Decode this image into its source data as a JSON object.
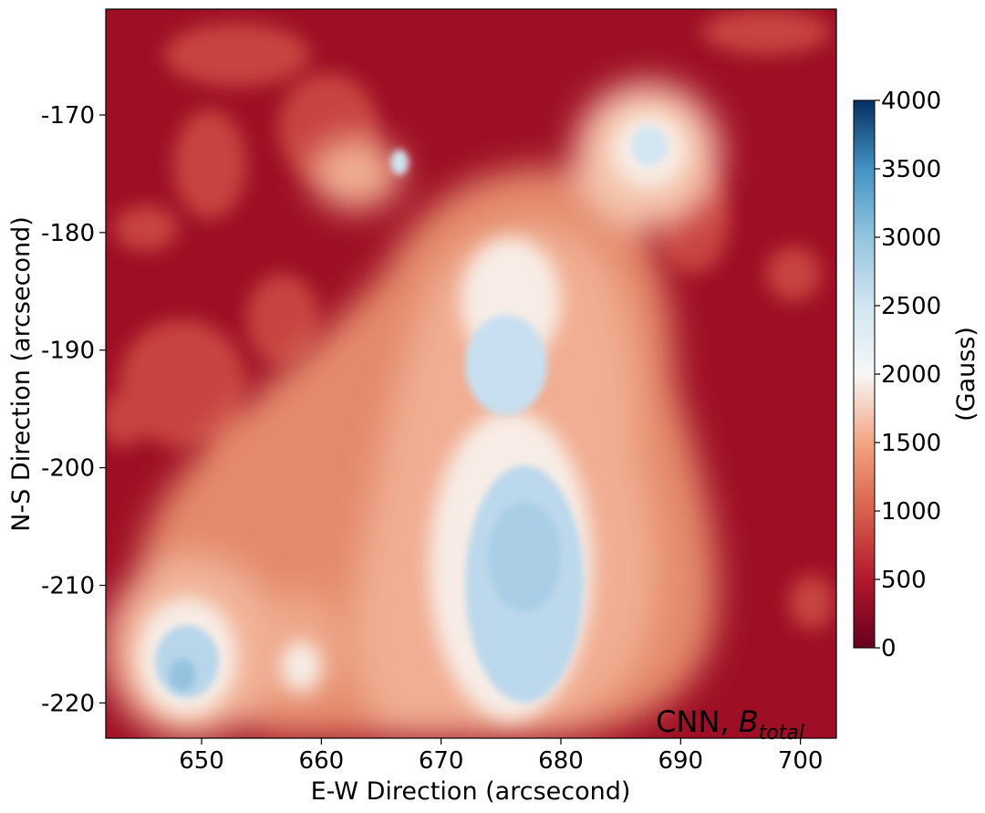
{
  "chart_data": {
    "type": "heatmap",
    "title": "",
    "xlabel": "E-W Direction (arcsecond)",
    "ylabel": "N-S Direction (arcsecond)",
    "xlim": [
      642,
      703
    ],
    "ylim": [
      -223,
      -161
    ],
    "x_ticks": [
      {
        "value": 650,
        "label": "650"
      },
      {
        "value": 660,
        "label": "660"
      },
      {
        "value": 670,
        "label": "670"
      },
      {
        "value": 680,
        "label": "680"
      },
      {
        "value": 690,
        "label": "690"
      },
      {
        "value": 700,
        "label": "700"
      }
    ],
    "y_ticks": [
      {
        "value": -170,
        "label": "-170"
      },
      {
        "value": -180,
        "label": "-180"
      },
      {
        "value": -190,
        "label": "-190"
      },
      {
        "value": -200,
        "label": "-200"
      },
      {
        "value": -210,
        "label": "-210"
      },
      {
        "value": -220,
        "label": "-220"
      }
    ],
    "colorbar": {
      "label": "(Gauss)",
      "range": [
        0,
        4000
      ],
      "colormap": "RdBu",
      "ticks": [
        {
          "value": 0,
          "label": "0"
        },
        {
          "value": 500,
          "label": "500"
        },
        {
          "value": 1000,
          "label": "1000"
        },
        {
          "value": 1500,
          "label": "1500"
        },
        {
          "value": 2000,
          "label": "2000"
        },
        {
          "value": 2500,
          "label": "2500"
        },
        {
          "value": 3000,
          "label": "3000"
        },
        {
          "value": 3500,
          "label": "3500"
        },
        {
          "value": 4000,
          "label": "4000"
        }
      ]
    },
    "annotation": {
      "prefix": "CNN, ",
      "symbol": "B",
      "subscript": "total"
    },
    "field_features": [
      {
        "name": "central umbra",
        "x": 677,
        "y": -205,
        "rx": 5,
        "ry": 12,
        "value": 2600
      },
      {
        "name": "lower-left umbra",
        "x": 649,
        "y": -216,
        "rx": 3,
        "ry": 4,
        "value": 2800
      },
      {
        "name": "upper-right umbra",
        "x": 685,
        "y": -173,
        "rx": 2,
        "ry": 2,
        "value": 2400
      },
      {
        "name": "penumbra",
        "x": 675,
        "y": -200,
        "rx": 15,
        "ry": 20,
        "value": 1200
      },
      {
        "name": "plage",
        "x": 655,
        "y": -185,
        "rx": 12,
        "ry": 10,
        "value": 400
      }
    ]
  }
}
